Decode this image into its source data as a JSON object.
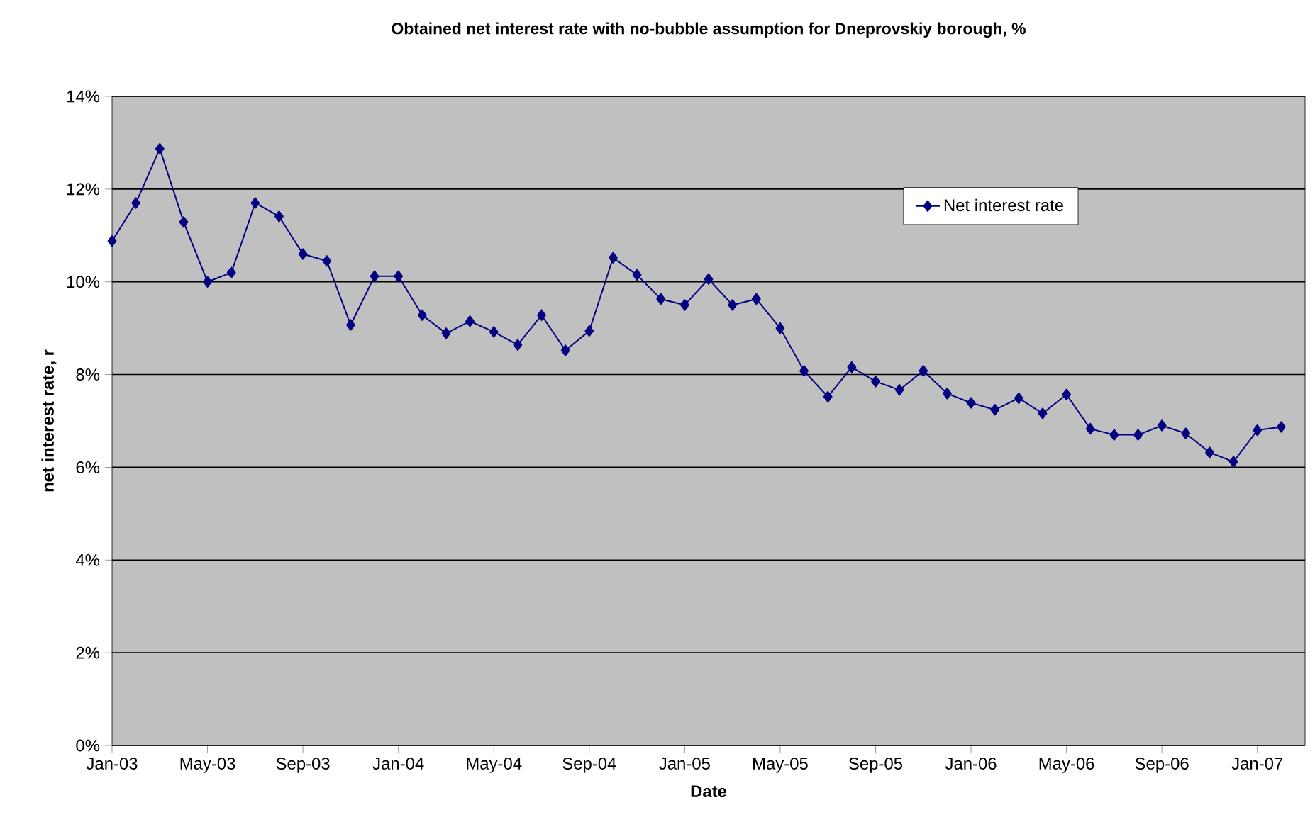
{
  "chart_data": {
    "type": "line",
    "title": "Obtained net interest rate with no-bubble assumption for Dneprovskiy borough, %",
    "xlabel": "Date",
    "ylabel": "net interest rate, r",
    "x": [
      "2003-01",
      "2003-02",
      "2003-03",
      "2003-04",
      "2003-05",
      "2003-06",
      "2003-07",
      "2003-08",
      "2003-09",
      "2003-10",
      "2003-11",
      "2003-12",
      "2004-01",
      "2004-02",
      "2004-03",
      "2004-04",
      "2004-05",
      "2004-06",
      "2004-07",
      "2004-08",
      "2004-09",
      "2004-10",
      "2004-11",
      "2004-12",
      "2005-01",
      "2005-02",
      "2005-03",
      "2005-04",
      "2005-05",
      "2005-06",
      "2005-07",
      "2005-08",
      "2005-09",
      "2005-10",
      "2005-11",
      "2005-12",
      "2006-01",
      "2006-02",
      "2006-03",
      "2006-04",
      "2006-05",
      "2006-06",
      "2006-07",
      "2006-08",
      "2006-09",
      "2006-10",
      "2006-11",
      "2006-12",
      "2007-01",
      "2007-02"
    ],
    "series": [
      {
        "name": "Net interest rate",
        "color": "#000080",
        "values": [
          10.88,
          11.7,
          12.87,
          11.29,
          10.0,
          10.2,
          11.7,
          11.41,
          10.6,
          10.45,
          9.07,
          10.12,
          10.12,
          9.28,
          8.89,
          9.15,
          8.92,
          8.64,
          9.28,
          8.52,
          8.94,
          10.52,
          10.15,
          9.63,
          9.5,
          10.06,
          9.5,
          9.63,
          9.0,
          8.08,
          7.52,
          8.16,
          7.85,
          7.67,
          8.08,
          7.59,
          7.39,
          7.24,
          7.49,
          7.16,
          7.57,
          6.83,
          6.7,
          6.7,
          6.9,
          6.73,
          6.32,
          6.12,
          6.8,
          6.87
        ]
      }
    ],
    "xlim": [
      "2003-01",
      "2007-03"
    ],
    "xticks": [
      {
        "value": "2003-01",
        "label": "Jan-03"
      },
      {
        "value": "2003-05",
        "label": "May-03"
      },
      {
        "value": "2003-09",
        "label": "Sep-03"
      },
      {
        "value": "2004-01",
        "label": "Jan-04"
      },
      {
        "value": "2004-05",
        "label": "May-04"
      },
      {
        "value": "2004-09",
        "label": "Sep-04"
      },
      {
        "value": "2005-01",
        "label": "Jan-05"
      },
      {
        "value": "2005-05",
        "label": "May-05"
      },
      {
        "value": "2005-09",
        "label": "Sep-05"
      },
      {
        "value": "2006-01",
        "label": "Jan-06"
      },
      {
        "value": "2006-05",
        "label": "May-06"
      },
      {
        "value": "2006-09",
        "label": "Sep-06"
      },
      {
        "value": "2007-01",
        "label": "Jan-07"
      }
    ],
    "ylim": [
      0,
      14
    ],
    "yticks": [
      {
        "value": 0,
        "label": "0%"
      },
      {
        "value": 2,
        "label": "2%"
      },
      {
        "value": 4,
        "label": "4%"
      },
      {
        "value": 6,
        "label": "6%"
      },
      {
        "value": 8,
        "label": "8%"
      },
      {
        "value": 10,
        "label": "10%"
      },
      {
        "value": 12,
        "label": "12%"
      },
      {
        "value": 14,
        "label": "14%"
      }
    ],
    "grid": "y",
    "legend": "top right",
    "marker": "diamond",
    "line_style": "solid"
  }
}
